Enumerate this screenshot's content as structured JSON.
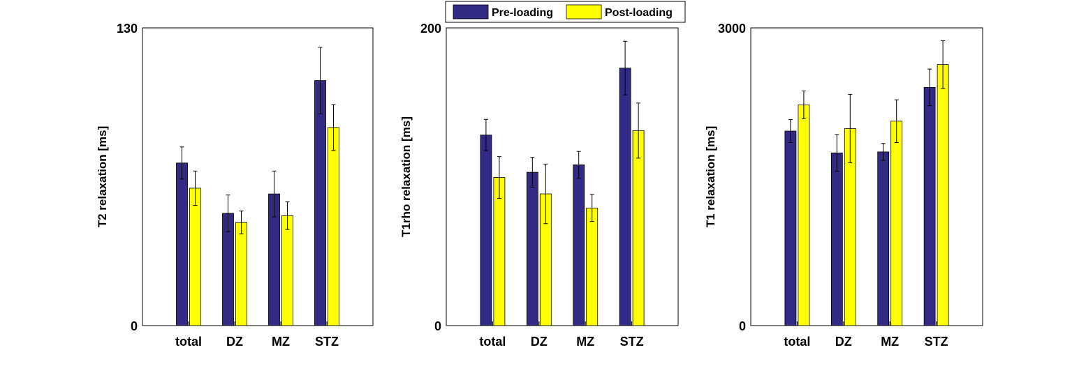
{
  "colors": {
    "pre": "#332a86",
    "post": "#ffff00",
    "axis": "#000000",
    "background": "#ffffff"
  },
  "legend": {
    "placement": "top-center",
    "entries": [
      "Pre-loading",
      "Post-loading"
    ]
  },
  "chart_data": [
    {
      "type": "bar",
      "categories": [
        "total",
        "DZ",
        "MZ",
        "STZ"
      ],
      "ylabel": "T2 relaxation [ms]",
      "ylim": [
        0,
        130
      ],
      "yticks": [
        "0",
        "130"
      ],
      "grid": false,
      "series": [
        {
          "name": "Pre-loading",
          "values": [
            71,
            49,
            57.5,
            107
          ],
          "errors": [
            7,
            8,
            10,
            14.5
          ]
        },
        {
          "name": "Post-loading",
          "values": [
            60,
            45,
            48,
            86.5
          ],
          "errors": [
            7.5,
            5,
            6,
            10
          ]
        }
      ]
    },
    {
      "type": "bar",
      "categories": [
        "total",
        "DZ",
        "MZ",
        "STZ"
      ],
      "ylabel": "T1rho relaxation [ms]",
      "ylim": [
        0,
        200
      ],
      "yticks": [
        "0",
        "200"
      ],
      "grid": false,
      "series": [
        {
          "name": "Pre-loading",
          "values": [
            128,
            103,
            108,
            173
          ],
          "errors": [
            10.5,
            10,
            9,
            18
          ]
        },
        {
          "name": "Post-loading",
          "values": [
            99.5,
            88.5,
            79,
            131
          ],
          "errors": [
            14,
            20,
            9,
            18.5
          ]
        }
      ]
    },
    {
      "type": "bar",
      "categories": [
        "total",
        "DZ",
        "MZ",
        "STZ"
      ],
      "ylabel": "T1 relaxation [ms]",
      "ylim": [
        0,
        3000
      ],
      "yticks": [
        "0",
        "3000"
      ],
      "grid": false,
      "series": [
        {
          "name": "Pre-loading",
          "values": [
            1960,
            1740,
            1750,
            2400
          ],
          "errors": [
            115,
            185,
            85,
            185
          ]
        },
        {
          "name": "Post-loading",
          "values": [
            2225,
            1985,
            2060,
            2630
          ],
          "errors": [
            140,
            345,
            215,
            240
          ]
        }
      ]
    }
  ]
}
